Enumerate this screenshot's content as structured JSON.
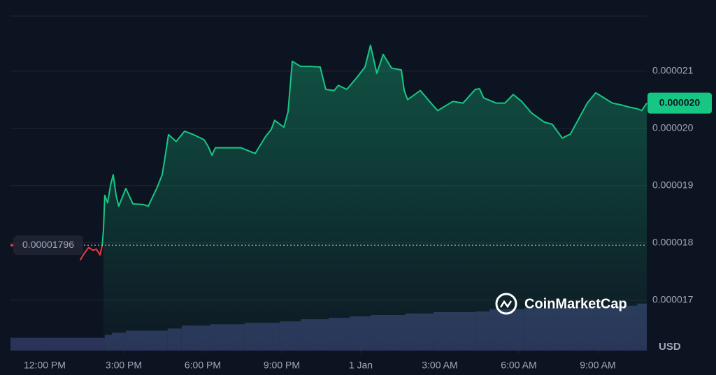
{
  "chart_data": {
    "type": "line",
    "x": [
      13.35,
      13.49,
      13.67,
      13.83,
      13.96,
      14.1,
      14.18,
      14.23,
      14.28,
      14.39,
      14.5,
      14.6,
      14.71,
      14.81,
      15.08,
      15.35,
      15.74,
      15.93,
      16.27,
      16.46,
      16.57,
      16.7,
      16.99,
      17.31,
      17.65,
      18.05,
      18.21,
      18.35,
      18.48,
      19.06,
      19.46,
      19.99,
      20.39,
      20.6,
      20.73,
      21.08,
      21.24,
      21.4,
      21.72,
      22.09,
      22.46,
      22.67,
      22.99,
      23.15,
      23.47,
      23.84,
      24.16,
      24.37,
      24.61,
      24.85,
      25.17,
      25.54,
      25.65,
      25.78,
      26.26,
      26.76,
      26.92,
      27.5,
      27.88,
      28.35,
      28.51,
      28.67,
      29.15,
      29.47,
      29.79,
      30.11,
      30.48,
      30.96,
      31.27,
      31.65,
      31.96,
      32.28,
      32.6,
      32.92,
      33.24,
      33.56,
      33.88,
      34.19,
      34.51,
      34.67,
      34.86
    ],
    "series": [
      {
        "color": "#16c784",
        "down_color": "#ea3943",
        "values": [
          1.77e-05,
          1.781e-05,
          1.792e-05,
          1.787e-05,
          1.789e-05,
          1.779e-05,
          1.795e-05,
          1.822e-05,
          1.883e-05,
          1.87e-05,
          1.901e-05,
          1.919e-05,
          1.883e-05,
          1.864e-05,
          1.895e-05,
          1.868e-05,
          1.867e-05,
          1.864e-05,
          1.897e-05,
          1.919e-05,
          1.95e-05,
          1.989e-05,
          1.977e-05,
          1.995e-05,
          1.989e-05,
          1.98e-05,
          1.968e-05,
          1.953e-05,
          1.966e-05,
          1.966e-05,
          1.966e-05,
          1.956e-05,
          1.986e-05,
          1.998e-05,
          2.014e-05,
          2.002e-05,
          2.029e-05,
          2.117e-05,
          2.108e-05,
          2.108e-05,
          2.107e-05,
          2.068e-05,
          2.066e-05,
          2.075e-05,
          2.068e-05,
          2.088e-05,
          2.107e-05,
          2.145e-05,
          2.096e-05,
          2.129e-05,
          2.105e-05,
          2.102e-05,
          2.066e-05,
          2.05e-05,
          2.066e-05,
          2.039e-05,
          2.031e-05,
          2.047e-05,
          2.044e-05,
          2.068e-05,
          2.069e-05,
          2.053e-05,
          2.044e-05,
          2.044e-05,
          2.059e-05,
          2.047e-05,
          2.027e-05,
          2.011e-05,
          2.007e-05,
          1.983e-05,
          1.99e-05,
          2.017e-05,
          2.044e-05,
          2.062e-05,
          2.053e-05,
          2.044e-05,
          2.041e-05,
          2.037e-05,
          2.034e-05,
          2.031e-05,
          2.044e-05
        ]
      }
    ],
    "baseline": 1.796e-05,
    "current": {
      "value": 2.044e-05,
      "label": "0.000020"
    },
    "xlim": [
      10.7,
      34.86
    ],
    "xticks": [
      {
        "value": 12,
        "label": "12:00 PM"
      },
      {
        "value": 15,
        "label": "3:00 PM"
      },
      {
        "value": 18,
        "label": "6:00 PM"
      },
      {
        "value": 21,
        "label": "9:00 PM"
      },
      {
        "value": 24,
        "label": "1 Jan"
      },
      {
        "value": 27,
        "label": "3:00 AM"
      },
      {
        "value": 30,
        "label": "6:00 AM"
      },
      {
        "value": 33,
        "label": "9:00 AM"
      }
    ],
    "ylim": [
      1.612e-05,
      2.196e-05
    ],
    "yticks": [
      1.7e-05,
      1.8e-05,
      1.9e-05,
      {
        "value": 2e-05,
        "label": "0.000020"
      },
      2.1e-05
    ],
    "grid": true,
    "volume": {
      "color": "#2b3358",
      "ylim": [
        0,
        100
      ],
      "x": [
        10.7,
        14.02,
        14.28,
        14.55,
        15.08,
        16.67,
        17.2,
        18.27,
        19.59,
        20.92,
        21.72,
        22.78,
        23.58,
        24.37,
        25.7,
        26.76,
        28.35,
        28.89,
        30.21,
        31.54,
        32.87,
        34.5
      ],
      "values": [
        18,
        18,
        22,
        25,
        28,
        31,
        35,
        37,
        39,
        41,
        44,
        46,
        48,
        50,
        52,
        54,
        55,
        58,
        60,
        61,
        63,
        66
      ]
    },
    "currency": "USD",
    "watermark": "CoinMarketCap"
  }
}
